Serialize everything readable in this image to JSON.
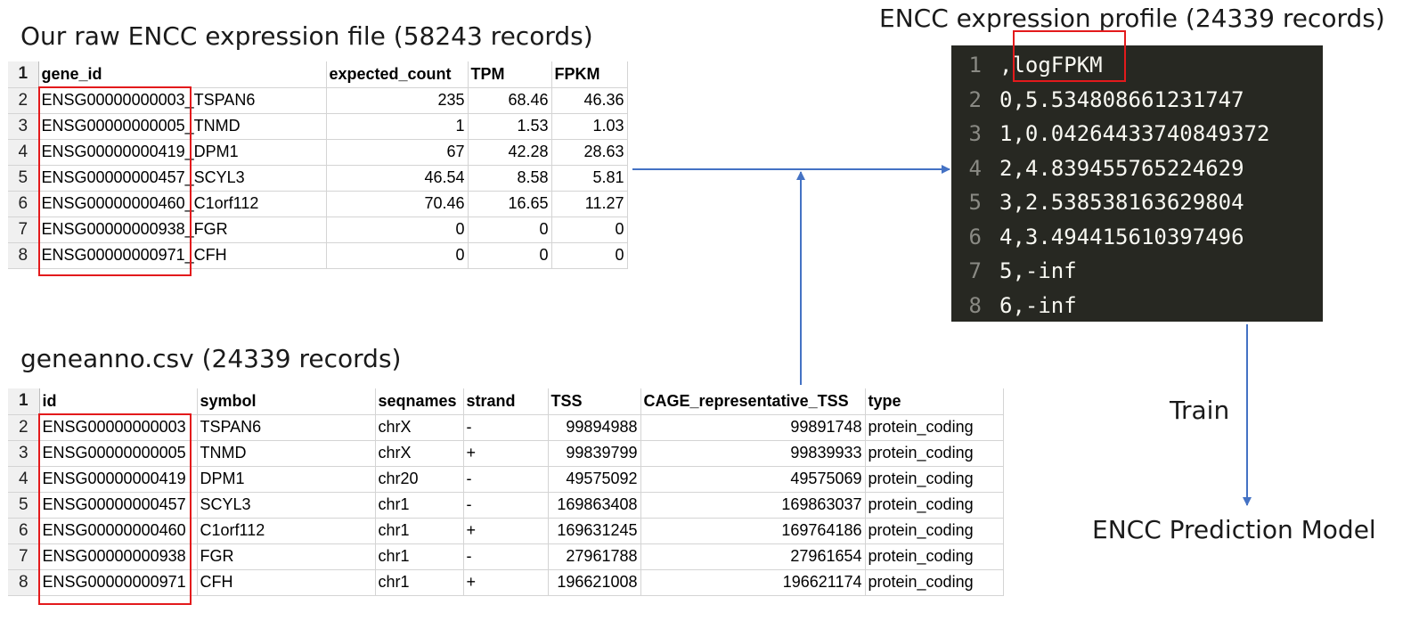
{
  "raw_file": {
    "title": "Our raw ENCC expression file (58243 records)",
    "row_numbers": [
      "1",
      "2",
      "3",
      "4",
      "5",
      "6",
      "7",
      "8"
    ],
    "headers": [
      "gene_id",
      "expected_count",
      "TPM",
      "FPKM"
    ],
    "rows": [
      [
        "ENSG00000000003_TSPAN6",
        "235",
        "68.46",
        "46.36"
      ],
      [
        "ENSG00000000005_TNMD",
        "1",
        "1.53",
        "1.03"
      ],
      [
        "ENSG00000000419_DPM1",
        "67",
        "42.28",
        "28.63"
      ],
      [
        "ENSG00000000457_SCYL3",
        "46.54",
        "8.58",
        "5.81"
      ],
      [
        "ENSG00000000460_C1orf112",
        "70.46",
        "16.65",
        "11.27"
      ],
      [
        "ENSG00000000938_FGR",
        "0",
        "0",
        "0"
      ],
      [
        "ENSG00000000971_CFH",
        "0",
        "0",
        "0"
      ]
    ]
  },
  "geneanno": {
    "title": "geneanno.csv (24339 records)",
    "row_numbers": [
      "1",
      "2",
      "3",
      "4",
      "5",
      "6",
      "7",
      "8"
    ],
    "headers": [
      "id",
      "symbol",
      "seqnames",
      "strand",
      "TSS",
      "CAGE_representative_TSS",
      "type"
    ],
    "rows": [
      [
        "ENSG00000000003",
        "TSPAN6",
        "chrX",
        "-",
        "99894988",
        "99891748",
        "protein_coding"
      ],
      [
        "ENSG00000000005",
        "TNMD",
        "chrX",
        "+",
        "99839799",
        "99839933",
        "protein_coding"
      ],
      [
        "ENSG00000000419",
        "DPM1",
        "chr20",
        "-",
        "49575092",
        "49575069",
        "protein_coding"
      ],
      [
        "ENSG00000000457",
        "SCYL3",
        "chr1",
        "-",
        "169863408",
        "169863037",
        "protein_coding"
      ],
      [
        "ENSG00000000460",
        "C1orf112",
        "chr1",
        "+",
        "169631245",
        "169764186",
        "protein_coding"
      ],
      [
        "ENSG00000000938",
        "FGR",
        "chr1",
        "-",
        "27961788",
        "27961654",
        "protein_coding"
      ],
      [
        "ENSG00000000971",
        "CFH",
        "chr1",
        "+",
        "196621008",
        "196621174",
        "protein_coding"
      ]
    ]
  },
  "profile": {
    "title": "ENCC expression profile (24339 records)",
    "lines": [
      {
        "n": "1",
        "text": ",logFPKM"
      },
      {
        "n": "2",
        "text": "0,5.534808661231747"
      },
      {
        "n": "3",
        "text": "1,0.04264433740849372"
      },
      {
        "n": "4",
        "text": "2,4.839455765224629"
      },
      {
        "n": "5",
        "text": "3,2.538538163629804"
      },
      {
        "n": "6",
        "text": "4,3.494415610397496"
      },
      {
        "n": "7",
        "text": "5,-inf"
      },
      {
        "n": "8",
        "text": "6,-inf"
      }
    ]
  },
  "train_label": "Train",
  "model_label": "ENCC Prediction Model",
  "colors": {
    "highlight_box": "#e31a1c",
    "arrow": "#4472c4",
    "editor_bg": "#272822",
    "editor_text": "#f8f8f2"
  }
}
